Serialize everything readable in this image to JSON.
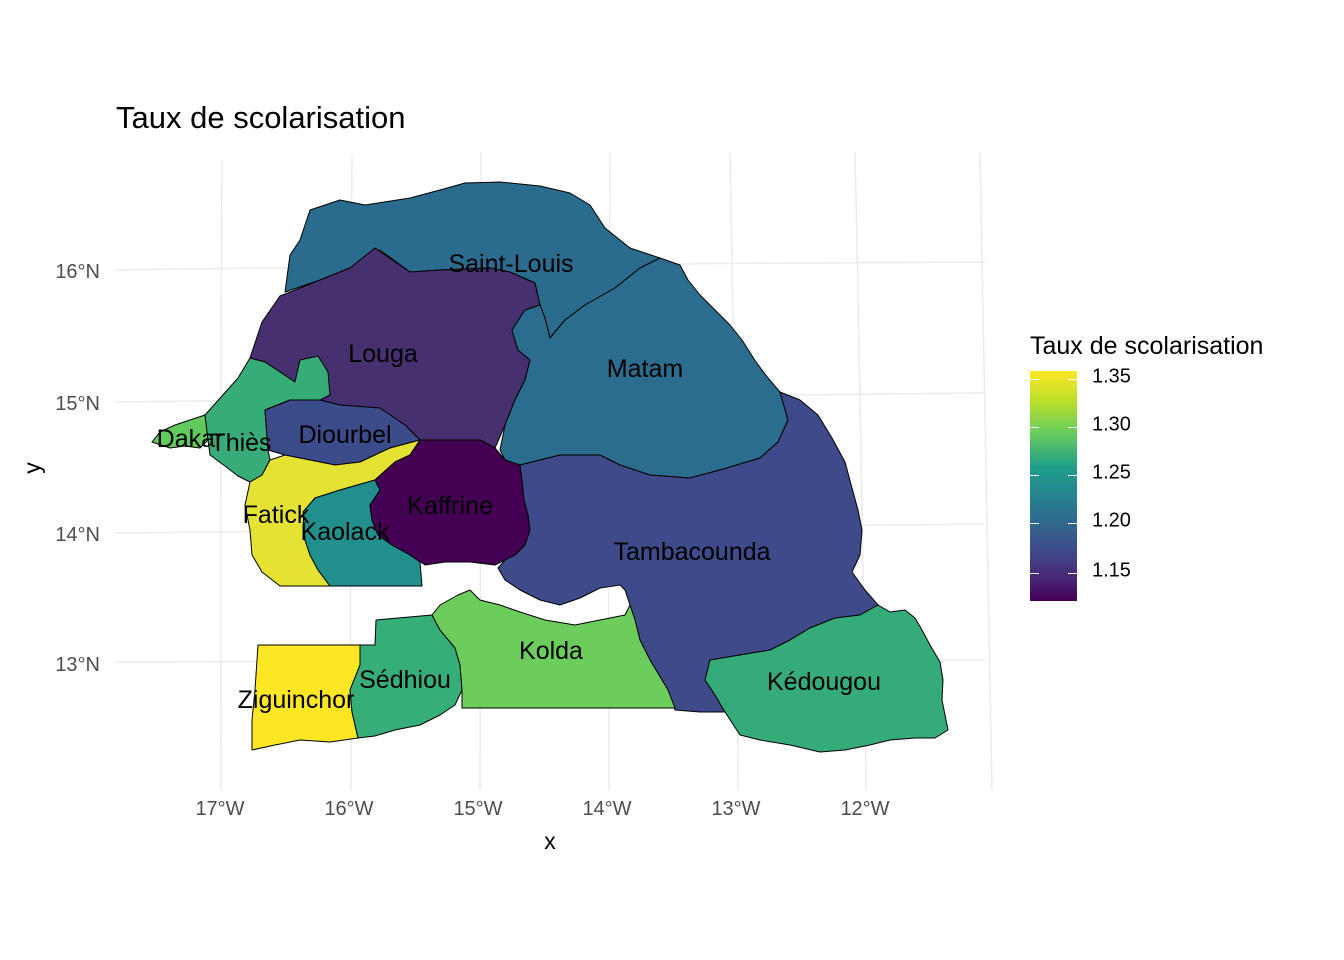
{
  "title": "Taux de scolarisation",
  "axes": {
    "x_label": "x",
    "y_label": "y",
    "x_ticks": [
      "17°W",
      "16°W",
      "15°W",
      "14°W",
      "13°W",
      "12°W"
    ],
    "y_ticks": [
      "13°N",
      "14°N",
      "15°N",
      "16°N"
    ]
  },
  "legend": {
    "title": "Taux de scolarisation",
    "labels": [
      "1.35",
      "1.30",
      "1.25",
      "1.20",
      "1.15"
    ],
    "colors": [
      "#440154",
      "#3b528b",
      "#21908c",
      "#5dc863",
      "#fde725"
    ]
  },
  "regions": [
    {
      "name": "Saint-Louis",
      "color": "#2a6b8e"
    },
    {
      "name": "Louga",
      "color": "#46306f"
    },
    {
      "name": "Matam",
      "color": "#2c6d8f"
    },
    {
      "name": "Thiès",
      "color": "#37ac78"
    },
    {
      "name": "Dakar",
      "color": "#62c95d"
    },
    {
      "name": "Diourbel",
      "color": "#3c4c8a"
    },
    {
      "name": "Fatick",
      "color": "#e4e232"
    },
    {
      "name": "Kaolack",
      "color": "#21908c"
    },
    {
      "name": "Kaffrine",
      "color": "#440154"
    },
    {
      "name": "Tambacounda",
      "color": "#3e4a89"
    },
    {
      "name": "Ziguinchor",
      "color": "#fde725"
    },
    {
      "name": "Sédhiou",
      "color": "#35ae79"
    },
    {
      "name": "Kolda",
      "color": "#6ccc5c"
    },
    {
      "name": "Kédougou",
      "color": "#35ab7a"
    }
  ]
}
